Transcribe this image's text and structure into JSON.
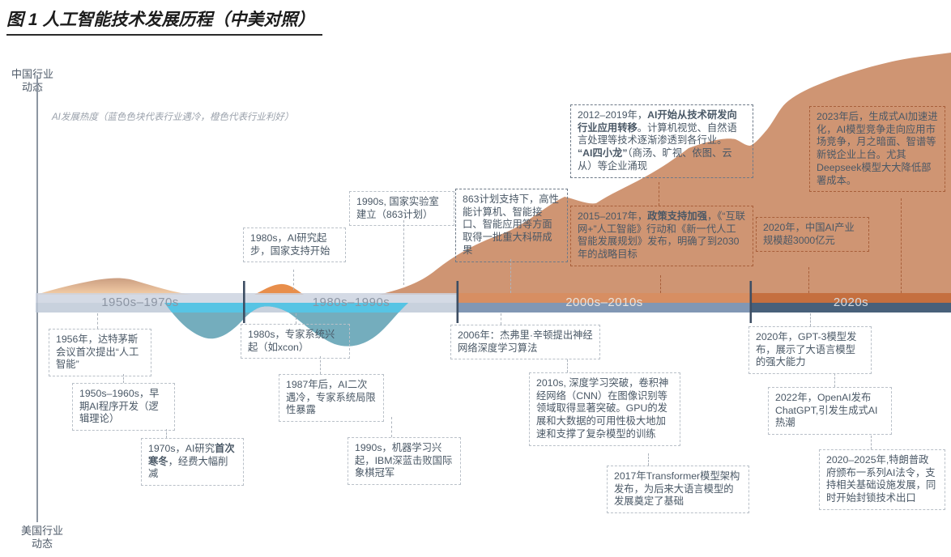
{
  "title": "图 1 人工智能技术发展历程（中美对照）",
  "axes": {
    "china_label": "中国行业\n动态",
    "us_label": "美国行业\n动态",
    "heat_note": "AI发展热度（蓝色色块代表行业遇冷，橙色代表行业利好）"
  },
  "timeline": {
    "eras": [
      {
        "label": "1950s–1970s"
      },
      {
        "label": "1980s–1990s"
      },
      {
        "label": "2000s–2010s"
      },
      {
        "label": "2020s"
      }
    ]
  },
  "boxes": {
    "cn_1980s": [
      {
        "t": "1980s，AI研究起步，国家支持开始"
      }
    ],
    "cn_1990s": [
      {
        "t": "1990s, 国家实验室建立（863计划）"
      }
    ],
    "cn_863": [
      {
        "t": "863计划支持下，高性能计算机、智能接口、智能应用等方面取得一批重大科研成果"
      }
    ],
    "cn_2012": [
      {
        "t": "2012–2019年，"
      },
      {
        "t": "AI开始从技术研发向行业应用转移",
        "b": 1
      },
      {
        "t": "。计算机视觉、自然语言处理等技术逐渐渗透到各行业。\n"
      },
      {
        "t": "“AI四小龙”",
        "b": 1
      },
      {
        "t": "（商汤、旷视、依图、云从）等企业涌现"
      }
    ],
    "cn_2015": [
      {
        "t": "2015–2017年，"
      },
      {
        "t": "政策支持加强",
        "b": 1
      },
      {
        "t": "，《“互联网+”人工智能》行动和《新一代人工智能发展规划》发布，明确了到2030年的战略目标"
      }
    ],
    "cn_2020": [
      {
        "t": "2020年，中国AI产业规模超3000亿元"
      }
    ],
    "cn_2023": [
      {
        "t": "2023年后，生成式AI加速进化，AI模型竞争走向应用市场竞争，月之暗面、智谱等新锐企业上台。尤其Deepseek模型大大降低部署成本。"
      }
    ],
    "us_1956": [
      {
        "t": "1956年，达特茅斯会议首次提出“人工智能”"
      }
    ],
    "us_1950s": [
      {
        "t": "1950s–1960s，早期AI程序开发（逻辑理论）"
      }
    ],
    "us_1970s": [
      {
        "t": "1970s，AI研究"
      },
      {
        "t": "首次寒冬",
        "b": 1
      },
      {
        "t": "，经费大幅削减"
      }
    ],
    "us_1980s": [
      {
        "t": "1980s，专家系统兴起（如xcon）"
      }
    ],
    "us_1987": [
      {
        "t": "1987年后，AI二次遇冷，专家系统局限性暴露"
      }
    ],
    "us_1990s": [
      {
        "t": "1990s，机器学习兴起，IBM深蓝击败国际象棋冠军"
      }
    ],
    "us_2006": [
      {
        "t": "2006年：杰弗里·辛顿提出神经网络深度学习算法"
      }
    ],
    "us_2010s": [
      {
        "t": "2010s, 深度学习突破，卷积神经网络（CNN）在图像识别等领域取得显著突破。GPU的发展和大数据的可用性极大地加速和支撑了复杂模型的训练"
      }
    ],
    "us_2017": [
      {
        "t": "2017年Transformer模型架构发布，为后来大语言模型的发展奠定了基础"
      }
    ],
    "us_2020": [
      {
        "t": "2020年，GPT-3模型发布，展示了大语言模型的强大能力"
      }
    ],
    "us_2022": [
      {
        "t": "2022年，OpenAI发布ChatGPT,引发生成式AI热潮"
      }
    ],
    "us_2025": [
      {
        "t": "2020–2025年,特朗普政府颁布一系列AI法令，支持相关基础设施发展，同时开始封锁技术出口"
      }
    ]
  },
  "heat_curve": [
    {
      "span": "1950s–1960s",
      "polarity": "orange-positive",
      "level": "low-medium"
    },
    {
      "span": "late 1960s–1970s",
      "polarity": "blue-negative",
      "level": "medium"
    },
    {
      "span": "early 1980s",
      "polarity": "orange-positive",
      "level": "low"
    },
    {
      "span": "late 1980s–1990s",
      "polarity": "blue-negative",
      "level": "medium"
    },
    {
      "span": "2000s–2025",
      "polarity": "orange-positive",
      "level": "rising from low to very high"
    }
  ],
  "colors": {
    "positive_area": "#cf9573",
    "positive_area_bright": "#e88e4b",
    "hill_gradient_top": "#cb9e81",
    "hill_gradient_bottom": "#f4cea7",
    "negative_area": "#74adbd",
    "negative_area_bright": "#57c4e4",
    "band_early_top": "#cdd4e0",
    "band_early_bottom": "#bec9d7",
    "band_2000s_top": "#d78e62",
    "band_2000s_bottom": "#8197b4",
    "band_2020s_top": "#c56f3f",
    "band_2020s_bottom": "#48607a",
    "era_divider": "#3d4e63",
    "era_label_early": "#8c95a3",
    "era_label_late": "#e3e2df",
    "box_border_gray": "#b9c0c8",
    "box_border_dark": "#6e7a88",
    "box_border_red": "#a85f3a",
    "box_text": "#4a5866"
  }
}
